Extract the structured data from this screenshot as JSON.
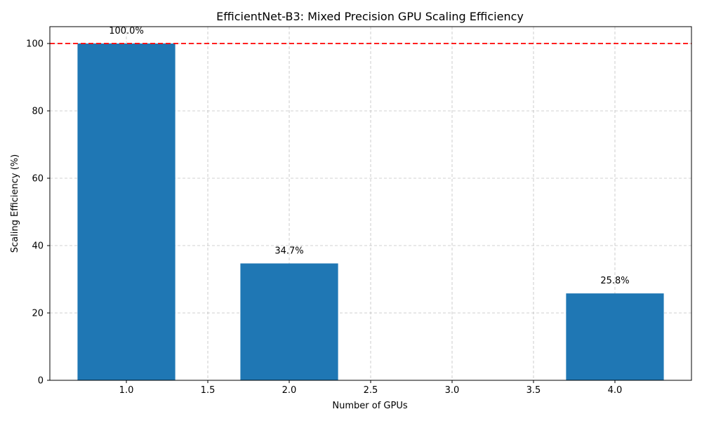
{
  "chart_data": {
    "type": "bar",
    "title": "EfficientNet-B3: Mixed Precision GPU Scaling Efficiency",
    "xlabel": "Number of GPUs",
    "ylabel": "Scaling Efficiency (%)",
    "x": [
      1,
      2,
      4
    ],
    "values": [
      100.0,
      34.7,
      25.8
    ],
    "data_labels": [
      "100.0%",
      "34.7%",
      "25.8%"
    ],
    "bar_width": 0.6,
    "xlim": [
      0.53,
      4.47
    ],
    "ylim": [
      0,
      105
    ],
    "xticks": [
      1.0,
      1.5,
      2.0,
      2.5,
      3.0,
      3.5,
      4.0
    ],
    "xtick_labels": [
      "1.0",
      "1.5",
      "2.0",
      "2.5",
      "3.0",
      "3.5",
      "4.0"
    ],
    "yticks": [
      0,
      20,
      40,
      60,
      80,
      100
    ],
    "ytick_labels": [
      "0",
      "20",
      "40",
      "60",
      "80",
      "100"
    ],
    "reference_line": {
      "y": 100,
      "style": "dashed",
      "color": "#ff0000"
    },
    "grid": true,
    "bar_color": "#1f77b4"
  }
}
